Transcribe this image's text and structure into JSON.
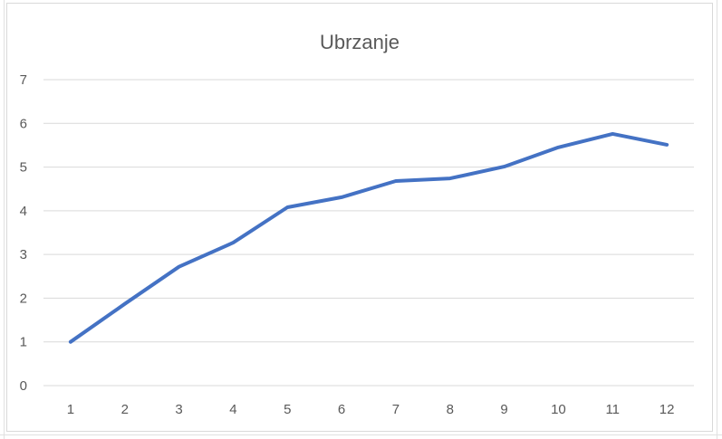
{
  "chart_data": {
    "type": "line",
    "title": "Ubrzanje",
    "xlabel": "",
    "ylabel": "",
    "categories": [
      "1",
      "2",
      "3",
      "4",
      "5",
      "6",
      "7",
      "8",
      "9",
      "10",
      "11",
      "12"
    ],
    "series": [
      {
        "values": [
          1.0,
          1.87,
          2.72,
          3.27,
          4.08,
          4.31,
          4.68,
          4.74,
          5.01,
          5.45,
          5.76,
          5.51
        ]
      }
    ],
    "ylim": [
      0,
      7
    ],
    "yticks": [
      0,
      1,
      2,
      3,
      4,
      5,
      6,
      7
    ],
    "grid": true,
    "legend": "none",
    "colors": {
      "line": "#4472c4",
      "grid": "#d9d9d9",
      "text": "#595959"
    }
  }
}
